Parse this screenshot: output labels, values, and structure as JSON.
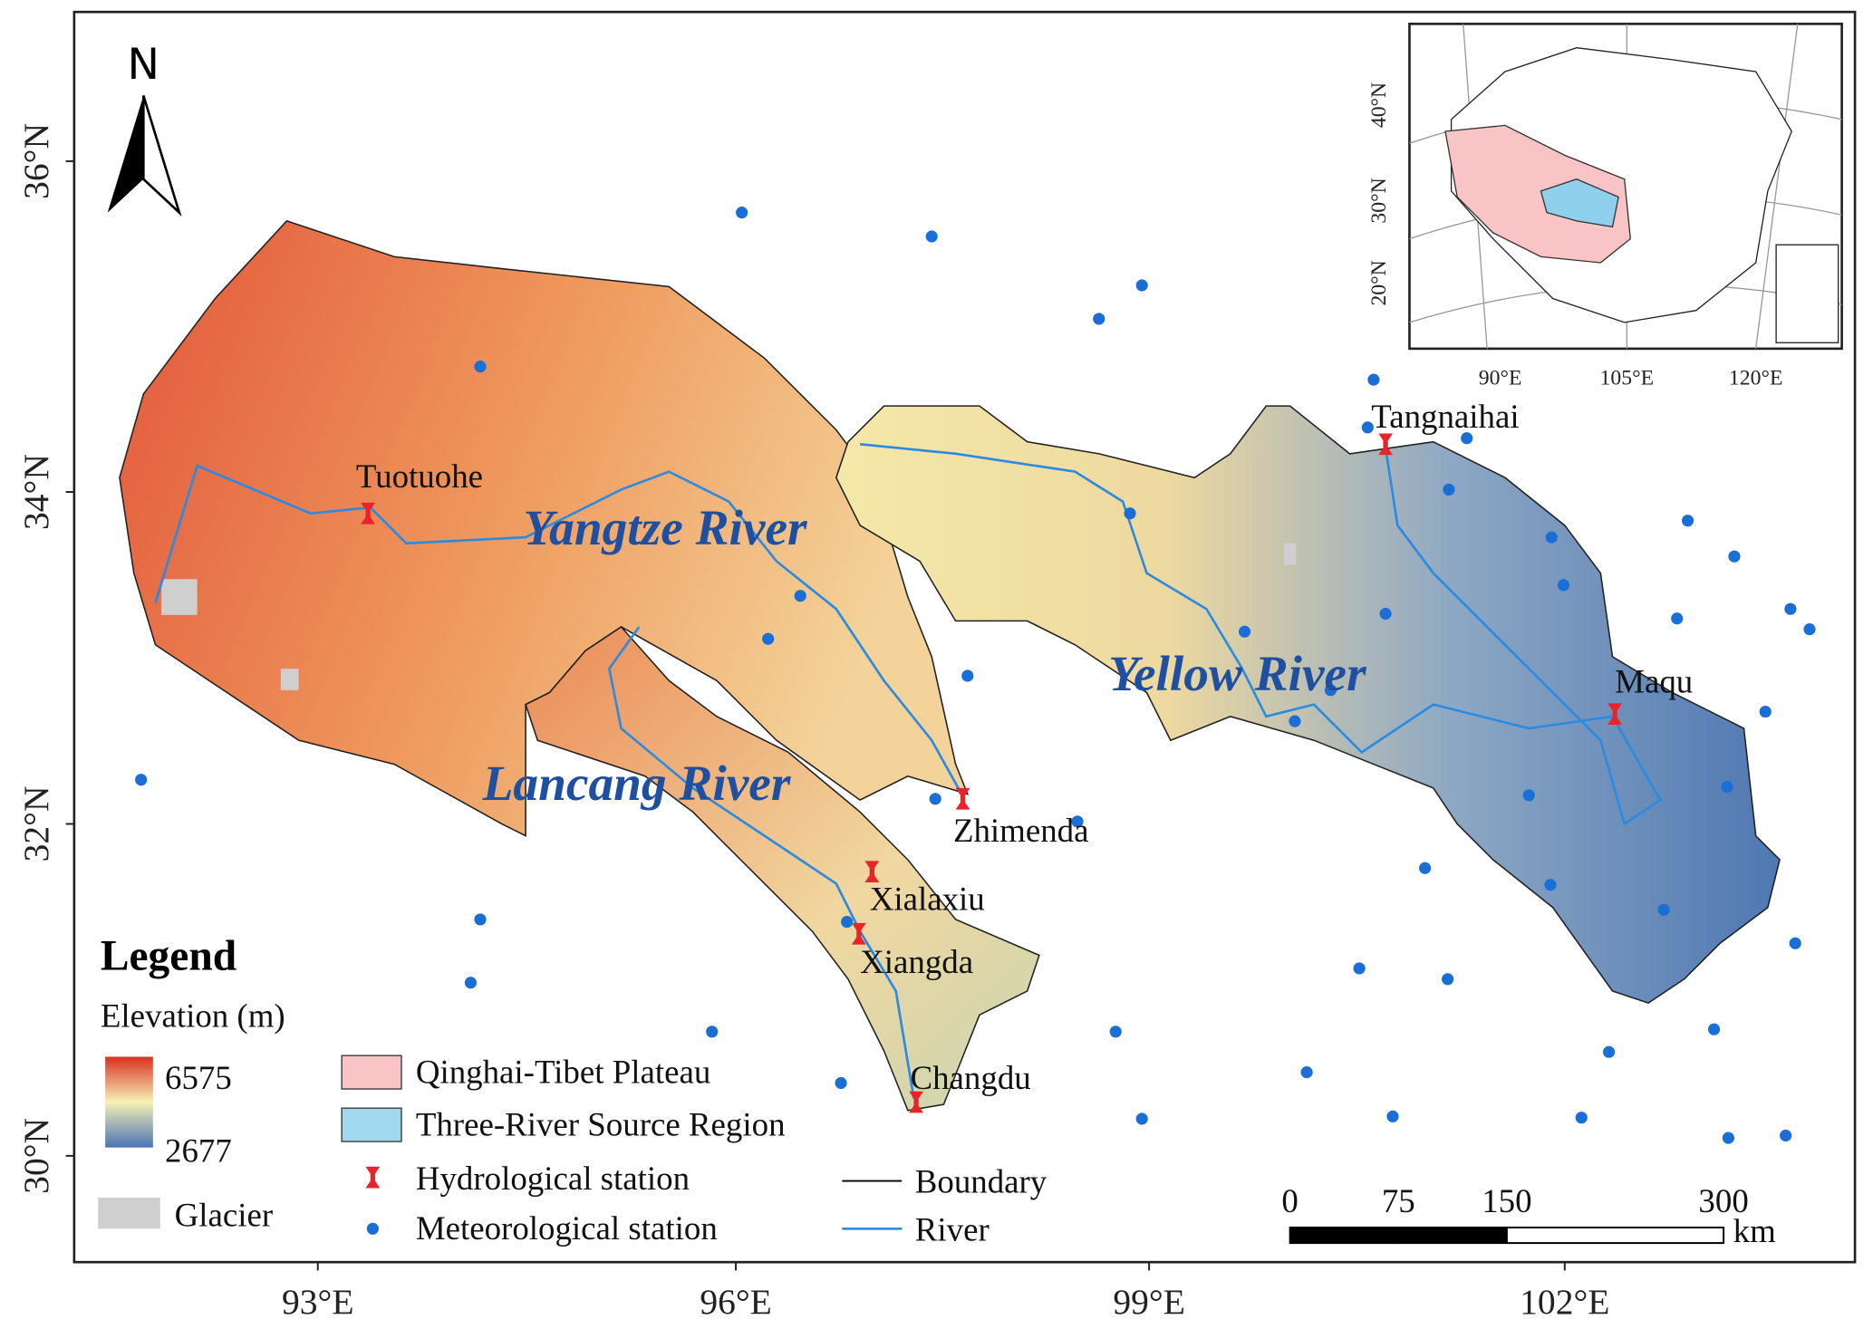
{
  "map": {
    "north_arrow": "N",
    "lon_labels": [
      "93°E",
      "96°E",
      "99°E",
      "102°E"
    ],
    "lat_labels": [
      "30°N",
      "32°N",
      "34°N",
      "36°N"
    ],
    "rivers": [
      "Yangtze River",
      "Lancang River",
      "Yellow River"
    ],
    "hydrological_stations": [
      "Tuotuohe",
      "Tangnaihai",
      "Maqu",
      "Zhimenda",
      "Xialaxiu",
      "Xiangda",
      "Changdu"
    ],
    "legend": {
      "title": "Legend",
      "elevation_title": "Elevation (m)",
      "elevation_max": 6575,
      "elevation_min": 2677,
      "glacier": "Glacier",
      "items": [
        "Qinghai-Tibet Plateau",
        "Three-River Source Region",
        "Hydrological station",
        "Meteorological station",
        "Boundary",
        "River"
      ]
    },
    "scale_bar": {
      "labels": [
        0,
        75,
        150,
        300
      ],
      "unit": "km"
    },
    "inset": {
      "lon_labels": [
        "90°E",
        "105°E",
        "120°E"
      ],
      "lat_labels": [
        "20°N",
        "30°N",
        "40°N"
      ]
    }
  }
}
